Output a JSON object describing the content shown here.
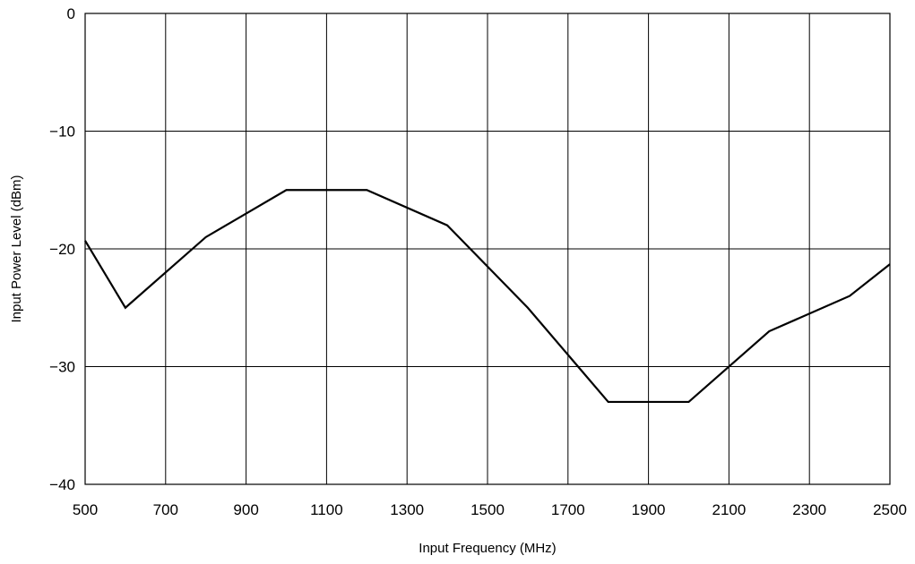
{
  "chart_data": {
    "type": "line",
    "xlabel": "Input Frequency (MHz)",
    "ylabel": "Input Power Level (dBm)",
    "xlim": [
      500,
      2500
    ],
    "ylim": [
      -40,
      0
    ],
    "x_ticks": [
      500,
      700,
      900,
      1100,
      1300,
      1500,
      1700,
      1900,
      2100,
      2300,
      2500
    ],
    "x_tick_labels": [
      "500",
      "700",
      "900",
      "1100",
      "1300",
      "1500",
      "1700",
      "1900",
      "2100",
      "2300",
      "2500"
    ],
    "y_ticks": [
      0,
      -10,
      -20,
      -30,
      -40
    ],
    "y_tick_labels": [
      "0",
      "−10",
      "−20",
      "−30",
      "−40"
    ],
    "x_grid": [
      500,
      700,
      900,
      1100,
      1300,
      1500,
      1700,
      1900,
      2100,
      2300,
      2500
    ],
    "y_grid": [
      0,
      -10,
      -20,
      -30,
      -40
    ],
    "grid": true,
    "series": [
      {
        "x": [
          500,
          600,
          800,
          1000,
          1200,
          1400,
          1600,
          1800,
          2000,
          2200,
          2400,
          2500
        ],
        "y": [
          -19.3,
          -25,
          -19,
          -15,
          -15,
          -18,
          -25,
          -33,
          -33,
          -27,
          -24,
          -21.3
        ]
      }
    ]
  }
}
